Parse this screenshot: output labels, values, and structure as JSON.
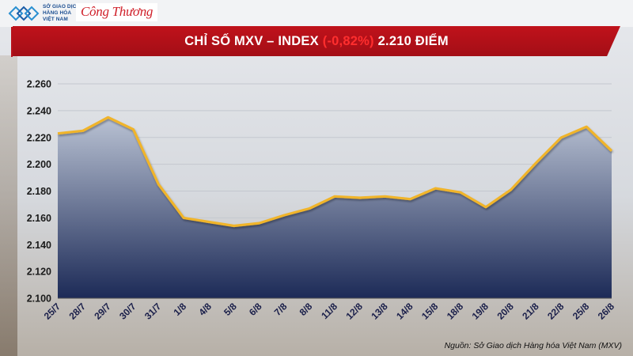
{
  "header": {
    "mxv_logo_line1": "SỞ GIAO DỊCH",
    "mxv_logo_line2": "HÀNG HÓA",
    "mxv_logo_line3": "VIỆT NAM",
    "congthuong_logo": "Công Thương"
  },
  "title": {
    "prefix": "CHỈ SỐ MXV – INDEX",
    "change": "(-0,82%)",
    "suffix": "2.210 ĐIỂM"
  },
  "source_note": "Nguồn: Sở Giao dịch Hàng hóa Việt Nam (MXV)",
  "colors": {
    "banner": "#b8101a",
    "line": "#f0b42a",
    "area_top": "#b9c2d3",
    "area_bottom": "#1c2a57",
    "change_text": "#ff2e2e"
  },
  "chart_data": {
    "type": "area",
    "categories": [
      "25/7",
      "28/7",
      "29/7",
      "30/7",
      "31/7",
      "1/8",
      "4/8",
      "5/8",
      "6/8",
      "7/8",
      "8/8",
      "11/8",
      "12/8",
      "13/8",
      "14/8",
      "15/8",
      "18/8",
      "19/8",
      "20/8",
      "21/8",
      "22/8",
      "25/8",
      "26/8"
    ],
    "values": [
      2223,
      2225,
      2235,
      2226,
      2185,
      2160,
      2157,
      2154,
      2156,
      2162,
      2167,
      2176,
      2175,
      2176,
      2174,
      2182,
      2179,
      2168,
      2181,
      2201,
      2220,
      2228,
      2210
    ],
    "y_ticks": [
      "2.100",
      "2.120",
      "2.140",
      "2.160",
      "2.180",
      "2.200",
      "2.220",
      "2.240",
      "2.260"
    ],
    "ylim": [
      2100,
      2260
    ],
    "grid": true,
    "legend": "none"
  }
}
